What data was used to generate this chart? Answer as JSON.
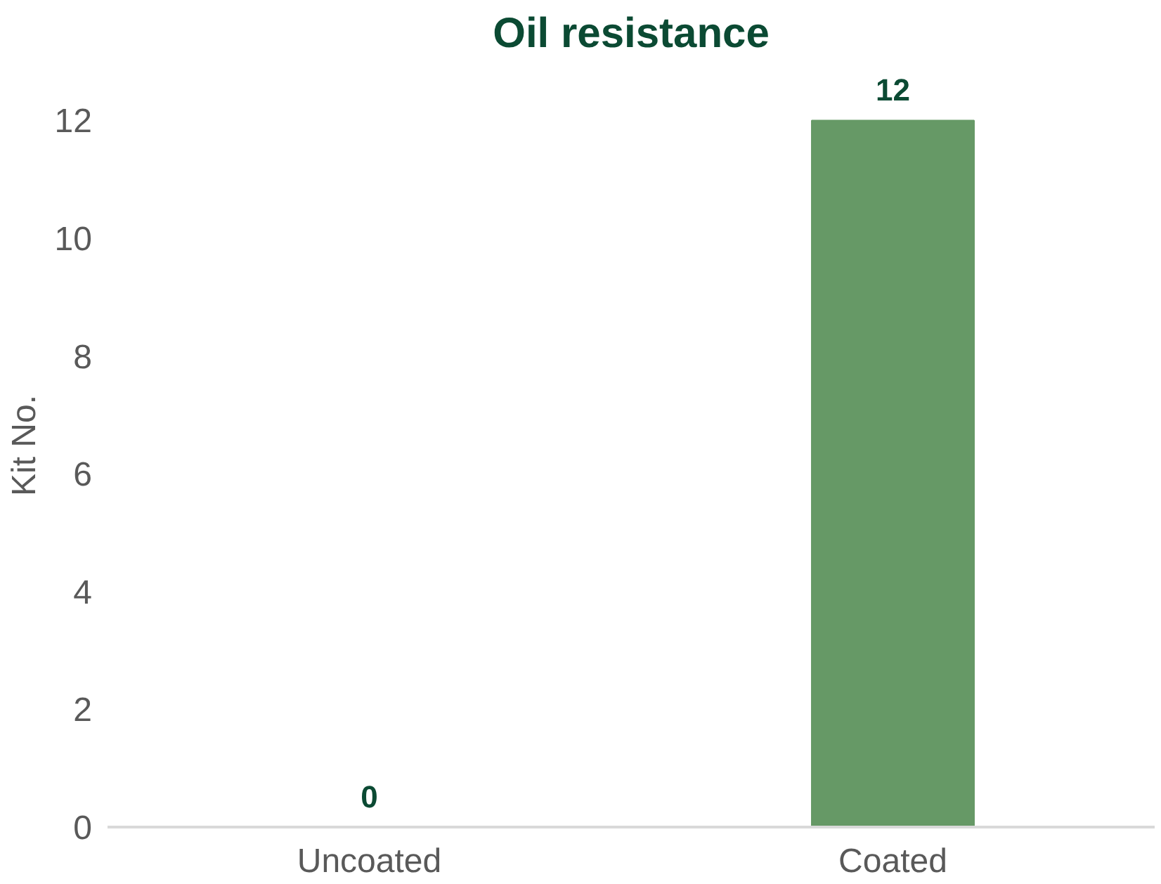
{
  "chart_data": {
    "type": "bar",
    "title": "Oil resistance",
    "ylabel": "Kit No.",
    "categories": [
      "Uncoated",
      "Coated"
    ],
    "values": [
      0,
      12
    ],
    "color": "#669966",
    "ylim": [
      0,
      12
    ],
    "yticks": [
      0,
      2,
      4,
      6,
      8,
      10,
      12
    ],
    "grid": false,
    "data_labels": true
  }
}
